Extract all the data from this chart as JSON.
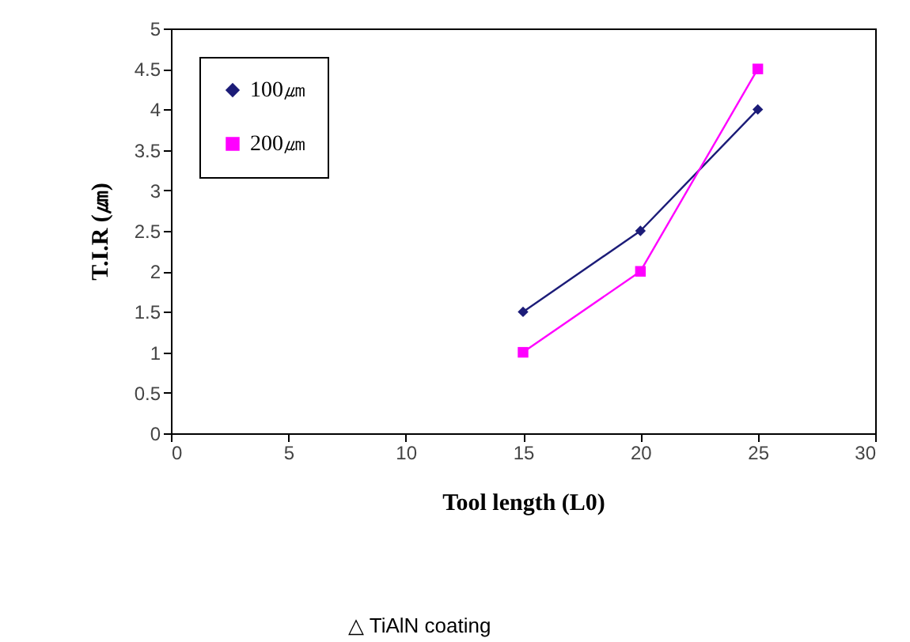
{
  "chart_data": {
    "type": "line",
    "xlabel": "Tool length (L0)",
    "ylabel": "T.I.R (㎛)",
    "x": [
      15,
      20,
      25
    ],
    "series": [
      {
        "name": "100㎛",
        "color": "#1c1c78",
        "marker": "diamond",
        "values": [
          1.5,
          2.5,
          4.0
        ]
      },
      {
        "name": "200㎛",
        "color": "#ff00ff",
        "marker": "square",
        "values": [
          1.0,
          2.0,
          4.5
        ]
      }
    ],
    "xlim": [
      0,
      30
    ],
    "xticks": [
      0,
      5,
      10,
      15,
      20,
      25,
      30
    ],
    "ylim": [
      0,
      5
    ],
    "yticks": [
      0,
      0.5,
      1,
      1.5,
      2,
      2.5,
      3,
      3.5,
      4,
      4.5,
      5
    ],
    "grid": false,
    "legend": "top left",
    "line_style": "solid",
    "annotations": [
      "△ TiAlN coating"
    ]
  }
}
